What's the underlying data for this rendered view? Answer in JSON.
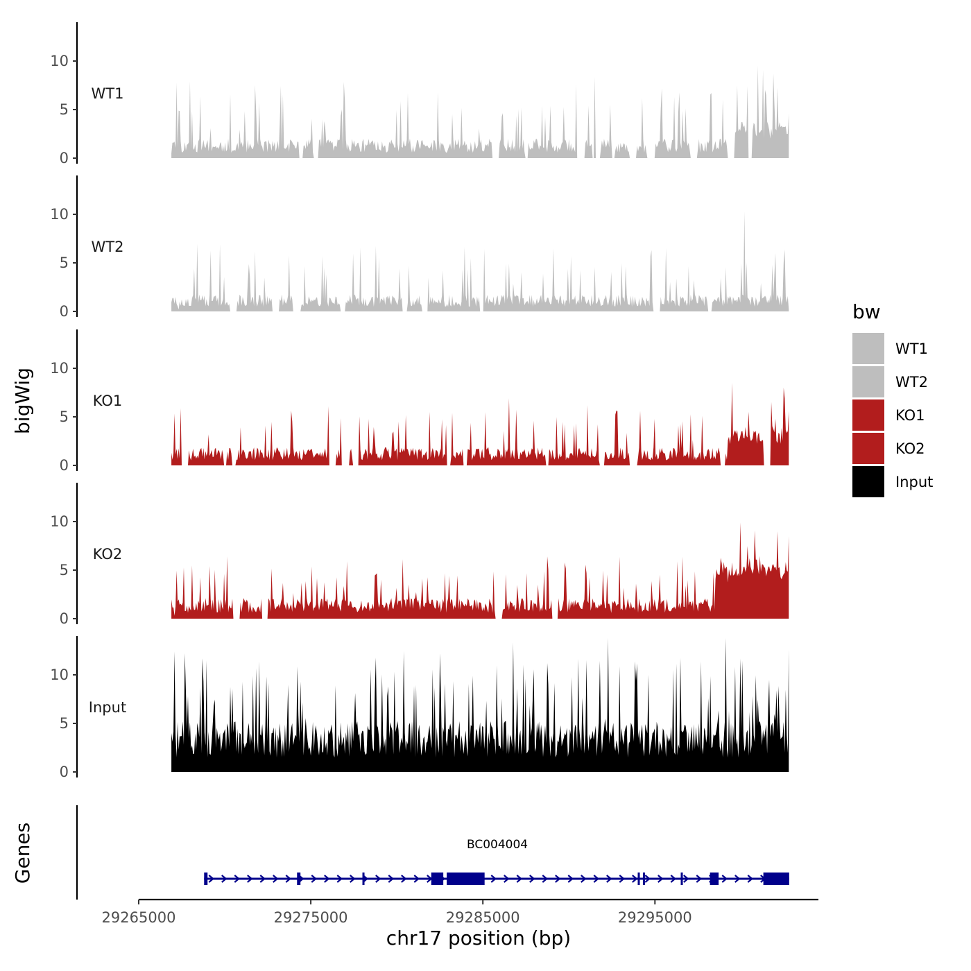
{
  "chart_data": {
    "type": "area",
    "chromosome": "chr17",
    "xlabel": "chr17 position (bp)",
    "ylabel": "bigWig",
    "genes_label": "Genes",
    "xlim": [
      29265000,
      29304500
    ],
    "ylim": [
      0,
      14
    ],
    "x_ticks": [
      29265000,
      29275000,
      29285000,
      29295000
    ],
    "x_tick_labels": [
      "29265000",
      "29275000",
      "29285000",
      "29295000"
    ],
    "y_ticks": [
      0,
      5,
      10
    ],
    "y_tick_labels": [
      "0",
      "5",
      "10"
    ],
    "x_range_signal": [
      29266900,
      29302800
    ],
    "legend": {
      "title": "bw",
      "position": "right",
      "entries": [
        {
          "label": "WT1",
          "color": "#bebebe"
        },
        {
          "label": "WT2",
          "color": "#bebebe"
        },
        {
          "label": "KO1",
          "color": "#b21d1d"
        },
        {
          "label": "KO2",
          "color": "#b21d1d"
        },
        {
          "label": "Input",
          "color": "#000000"
        }
      ]
    },
    "tracks": [
      {
        "name": "WT1",
        "color": "#bebebe",
        "seed": 11,
        "base": 1.6,
        "peak_p": 0.1,
        "peak_h": 4.0,
        "gap_p": 0.018,
        "anchors": [
          [
            29266900,
            0.5
          ],
          [
            29267200,
            7.8
          ],
          [
            29268000,
            7.9
          ],
          [
            29291500,
            8.4
          ],
          [
            29301300,
            9.1
          ],
          [
            29301900,
            8.7
          ],
          [
            29302800,
            4.6
          ]
        ]
      },
      {
        "name": "WT2",
        "color": "#bebebe",
        "seed": 23,
        "base": 1.4,
        "peak_p": 0.09,
        "peak_h": 3.6,
        "gap_p": 0.018,
        "anchors": [
          [
            29267300,
            0.2
          ],
          [
            29269700,
            6.9
          ],
          [
            29294800,
            6.3
          ],
          [
            29300200,
            10.3
          ],
          [
            29302800,
            0.2
          ]
        ]
      },
      {
        "name": "KO1",
        "color": "#b21d1d",
        "seed": 37,
        "base": 1.5,
        "peak_p": 0.1,
        "peak_h": 3.2,
        "gap_p": 0.022,
        "anchors": [
          [
            29266900,
            1.3
          ],
          [
            29276000,
            6.1
          ],
          [
            29286500,
            6.9
          ],
          [
            29299500,
            8.5
          ],
          [
            29302500,
            8.0
          ],
          [
            29302800,
            5.6
          ]
        ]
      },
      {
        "name": "KO2",
        "color": "#b21d1d",
        "seed": 51,
        "base": 1.7,
        "peak_p": 0.11,
        "peak_h": 3.2,
        "gap_p": 0.008,
        "anchors": [
          [
            29267100,
            0.3
          ],
          [
            29288800,
            5.1
          ],
          [
            29300800,
            9.1
          ],
          [
            29302100,
            9.0
          ],
          [
            29302800,
            8.5
          ]
        ]
      },
      {
        "name": "Input",
        "color": "#000000",
        "seed": 71,
        "base": 4.2,
        "peak_p": 0.16,
        "peak_h": 6.0,
        "gap_p": 0.0,
        "anchors": [
          [
            29266900,
            4.0
          ],
          [
            29267100,
            12.4
          ],
          [
            29292300,
            13.8
          ],
          [
            29299100,
            13.8
          ],
          [
            29302800,
            12.6
          ]
        ]
      }
    ],
    "gene": {
      "name": "BC004004",
      "strand": "+",
      "start": 29268800,
      "end": 29302800,
      "color": "#00008b",
      "exons": [
        [
          29268800,
          29269000
        ],
        [
          29274200,
          29274400
        ],
        [
          29278000,
          29278100
        ],
        [
          29282000,
          29282700
        ],
        [
          29282900,
          29285100
        ],
        [
          29294000,
          29294100
        ],
        [
          29294300,
          29294400
        ],
        [
          29296500,
          29296600
        ],
        [
          29298200,
          29298700
        ],
        [
          29301300,
          29302800
        ]
      ]
    }
  }
}
